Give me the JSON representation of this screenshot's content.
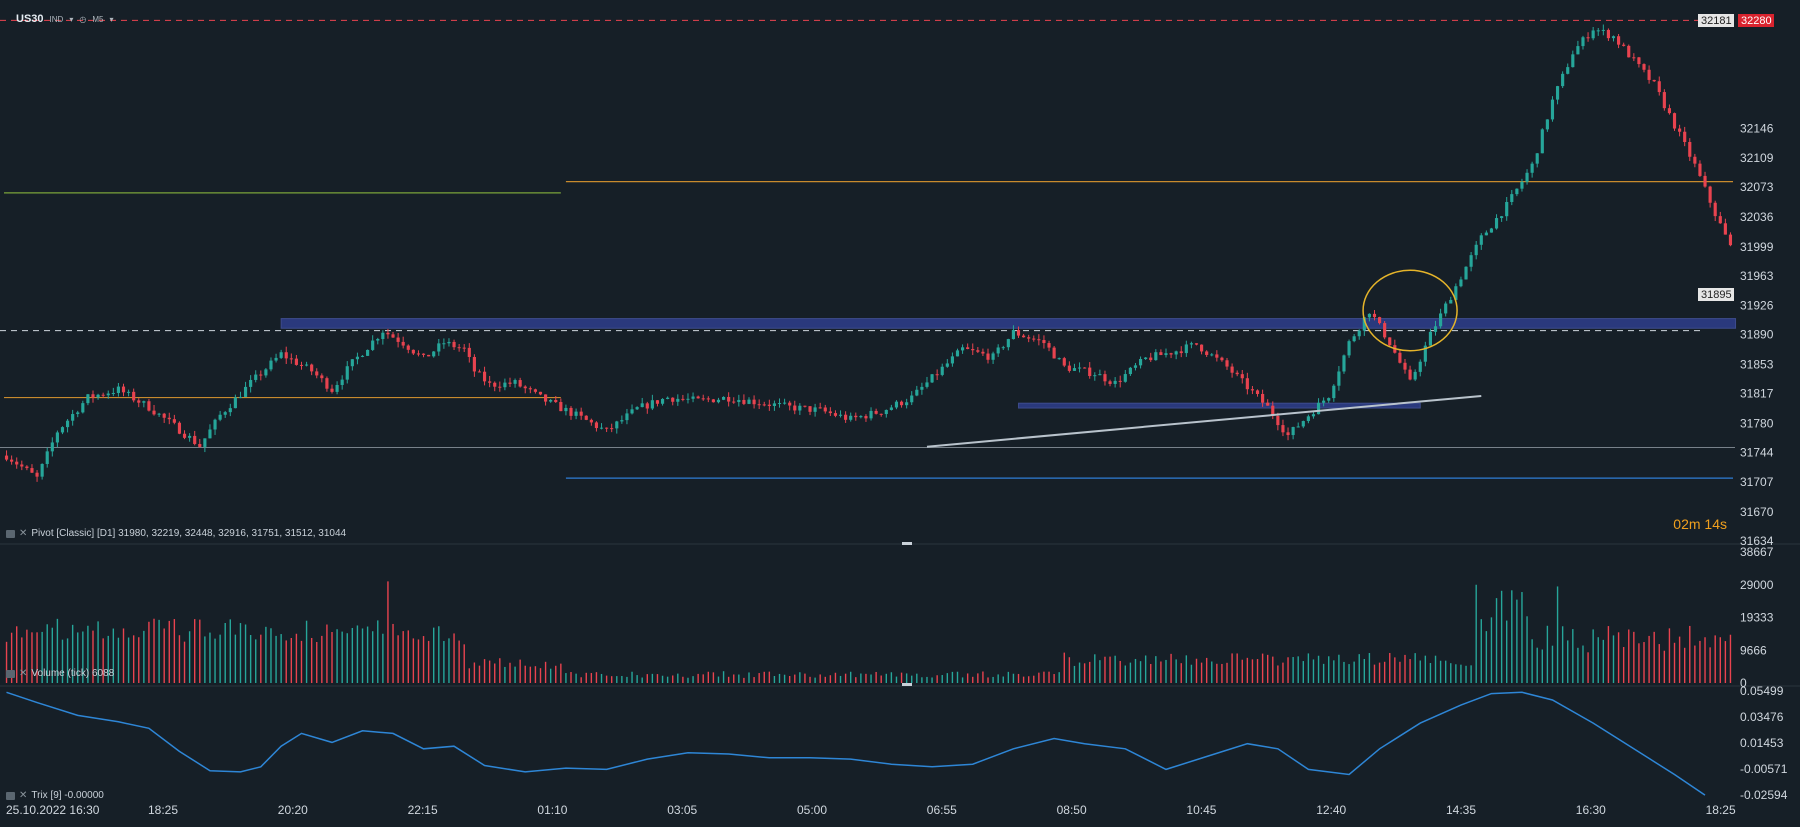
{
  "header": {
    "symbol": "US30",
    "type_label": "IND",
    "timeframe": "M5",
    "clock_icon": "clock-icon",
    "dropdown_icon": "chevron-down-icon"
  },
  "timer": {
    "minutes": "02",
    "m": "m",
    "seconds": "14",
    "s": "s"
  },
  "colors": {
    "background": "#161f27",
    "bull": "#26a69a",
    "bear": "#e8434f",
    "zone": "#3b4fc4",
    "pivot_r": "#c88a2d",
    "pivot_green": "#7aa33a",
    "pivot_blue": "#2f7dd6",
    "trix": "#2e86d6",
    "trend": "#b9c3cc",
    "circle": "#e5b42a",
    "axis_text": "#d0d7de"
  },
  "panels": {
    "pivot_label": "Pivot [Classic] [D1] 31980, 32219, 32448, 32916, 31751, 31512, 31044",
    "volume_label": "Volume (tick) 6088",
    "trix_label": "Trix [9] -0.00000"
  },
  "chart_data": [
    {
      "type": "candlestick",
      "name": "price",
      "symbol": "US30",
      "timeframe": "M5",
      "ylim": [
        31634,
        32283
      ],
      "y_ticks": [
        32146,
        32109,
        32073,
        32036,
        31999,
        31963,
        31926,
        31890,
        31853,
        31817,
        31780,
        31744,
        31707,
        31670,
        31634
      ],
      "price_badges": [
        {
          "value": "32181",
          "style": "light"
        },
        {
          "value": "32280",
          "style": "red"
        },
        {
          "value": "31895",
          "style": "light"
        }
      ],
      "x_tick_labels": [
        "25.10.2022 16:30",
        "18:25",
        "20:20",
        "22:15",
        "01:10",
        "03:05",
        "05:00",
        "06:55",
        "08:50",
        "10:45",
        "12:40",
        "14:35",
        "16:30",
        "18:25"
      ],
      "close_path": [
        [
          0,
          31740
        ],
        [
          6,
          31712
        ],
        [
          10,
          31770
        ],
        [
          16,
          31812
        ],
        [
          22,
          31822
        ],
        [
          28,
          31800
        ],
        [
          34,
          31772
        ],
        [
          38,
          31752
        ],
        [
          42,
          31790
        ],
        [
          48,
          31830
        ],
        [
          54,
          31866
        ],
        [
          60,
          31845
        ],
        [
          64,
          31822
        ],
        [
          68,
          31855
        ],
        [
          74,
          31895
        ],
        [
          78,
          31880
        ],
        [
          82,
          31860
        ],
        [
          86,
          31880
        ],
        [
          90,
          31872
        ],
        [
          92,
          31845
        ],
        [
          95,
          31828
        ],
        [
          100,
          31830
        ],
        [
          106,
          31808
        ],
        [
          112,
          31790
        ],
        [
          118,
          31770
        ],
        [
          124,
          31798
        ],
        [
          130,
          31812
        ],
        [
          136,
          31808
        ],
        [
          142,
          31812
        ],
        [
          148,
          31806
        ],
        [
          154,
          31800
        ],
        [
          160,
          31796
        ],
        [
          166,
          31785
        ],
        [
          172,
          31795
        ],
        [
          178,
          31812
        ],
        [
          184,
          31848
        ],
        [
          188,
          31872
        ],
        [
          194,
          31862
        ],
        [
          198,
          31893
        ],
        [
          204,
          31880
        ],
        [
          208,
          31850
        ],
        [
          214,
          31842
        ],
        [
          218,
          31830
        ],
        [
          224,
          31860
        ],
        [
          230,
          31870
        ],
        [
          234,
          31878
        ],
        [
          240,
          31850
        ],
        [
          244,
          31825
        ],
        [
          248,
          31800
        ],
        [
          252,
          31765
        ],
        [
          256,
          31790
        ],
        [
          260,
          31815
        ],
        [
          264,
          31880
        ],
        [
          268,
          31920
        ],
        [
          272,
          31880
        ],
        [
          276,
          31830
        ],
        [
          280,
          31890
        ],
        [
          285,
          31950
        ],
        [
          290,
          32010
        ],
        [
          295,
          32050
        ],
        [
          300,
          32100
        ],
        [
          304,
          32180
        ],
        [
          308,
          32240
        ],
        [
          312,
          32270
        ],
        [
          316,
          32260
        ],
        [
          320,
          32230
        ],
        [
          324,
          32200
        ],
        [
          328,
          32150
        ],
        [
          332,
          32100
        ],
        [
          336,
          32040
        ],
        [
          340,
          31985
        ]
      ],
      "candle_count": 340,
      "zones": [
        {
          "from": 31898,
          "to": 31910,
          "x_start": 54,
          "x_end": 340
        },
        {
          "from": 31799,
          "to": 31805,
          "x_start": 199,
          "x_end": 278
        }
      ],
      "pivot_lines": [
        {
          "value": 32066,
          "segment": "previous",
          "color": "pivot_green"
        },
        {
          "value": 31812,
          "segment": "previous",
          "color": "pivot_r"
        },
        {
          "value": 32080,
          "segment": "current",
          "color": "pivot_r"
        },
        {
          "value": 31712,
          "segment": "current",
          "color": "pivot_blue"
        },
        {
          "value": 31750,
          "segment": "full",
          "color": "trend"
        }
      ],
      "dashed_lines": [
        32280,
        31895
      ],
      "trendline": {
        "from": [
          181,
          31751
        ],
        "to": [
          290,
          31814
        ]
      },
      "highlight_ellipse": {
        "center": [
          276,
          31920
        ],
        "value_range": [
          31880,
          31960
        ]
      }
    },
    {
      "type": "bar",
      "name": "Volume (tick)",
      "ylim": [
        0,
        38667
      ],
      "y_ticks": [
        38667,
        29000,
        19333,
        9666,
        0
      ],
      "last_value": 6088
    },
    {
      "type": "line",
      "name": "Trix",
      "ylim": [
        -0.02594,
        0.05499
      ],
      "y_ticks": [
        0.05499,
        0.03476,
        0.01453,
        -0.00571,
        -0.02594
      ],
      "points": [
        [
          0,
          0.054
        ],
        [
          6,
          0.046
        ],
        [
          14,
          0.036
        ],
        [
          22,
          0.031
        ],
        [
          28,
          0.026
        ],
        [
          34,
          0.008
        ],
        [
          40,
          -0.007
        ],
        [
          46,
          -0.008
        ],
        [
          50,
          -0.004
        ],
        [
          54,
          0.012
        ],
        [
          58,
          0.022
        ],
        [
          64,
          0.015
        ],
        [
          70,
          0.024
        ],
        [
          76,
          0.022
        ],
        [
          82,
          0.01
        ],
        [
          88,
          0.012
        ],
        [
          94,
          -0.003
        ],
        [
          102,
          -0.008
        ],
        [
          110,
          -0.005
        ],
        [
          118,
          -0.006
        ],
        [
          126,
          0.002
        ],
        [
          134,
          0.007
        ],
        [
          142,
          0.006
        ],
        [
          150,
          0.003
        ],
        [
          158,
          0.003
        ],
        [
          166,
          0.002
        ],
        [
          174,
          -0.002
        ],
        [
          182,
          -0.004
        ],
        [
          190,
          -0.002
        ],
        [
          198,
          0.01
        ],
        [
          206,
          0.018
        ],
        [
          212,
          0.014
        ],
        [
          220,
          0.01
        ],
        [
          228,
          -0.006
        ],
        [
          236,
          0.004
        ],
        [
          244,
          0.014
        ],
        [
          250,
          0.01
        ],
        [
          256,
          -0.006
        ],
        [
          264,
          -0.01
        ],
        [
          270,
          0.01
        ],
        [
          278,
          0.03
        ],
        [
          286,
          0.044
        ],
        [
          292,
          0.053
        ],
        [
          298,
          0.054
        ],
        [
          304,
          0.048
        ],
        [
          312,
          0.03
        ],
        [
          320,
          0.01
        ],
        [
          328,
          -0.01
        ],
        [
          334,
          -0.026
        ]
      ]
    }
  ]
}
